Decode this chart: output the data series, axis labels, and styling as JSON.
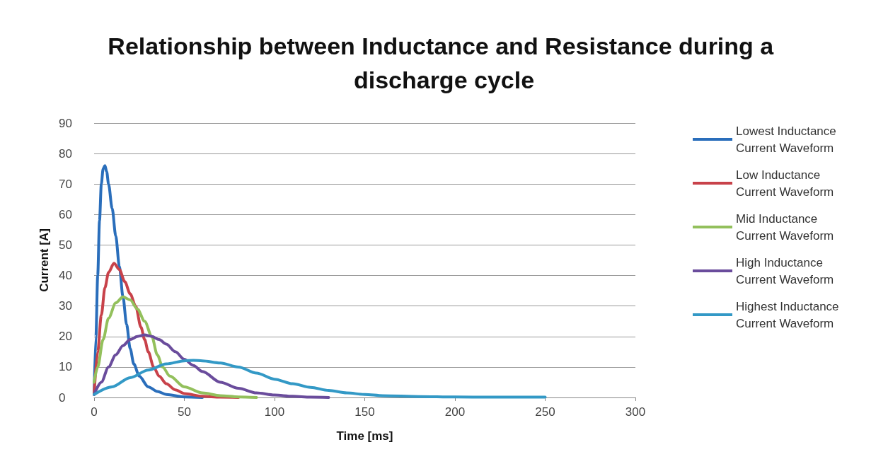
{
  "chart_data": {
    "type": "line",
    "title": "Relationship between Inductance and Resistance during a discharge cycle",
    "xlabel": "Time [ms]",
    "ylabel": "Current [A]",
    "xlim": [
      0,
      300
    ],
    "xticks": [
      0,
      50,
      100,
      150,
      200,
      250,
      300
    ],
    "ylim": [
      0,
      90
    ],
    "yticks": [
      0,
      10,
      20,
      30,
      40,
      50,
      60,
      70,
      80,
      90
    ],
    "grid": "y",
    "legend": "right",
    "marker": "none",
    "line_style": "solid",
    "series": [
      {
        "name": "Lowest Inductance Current Waveform",
        "color": "#2a6ebb",
        "x": [
          0,
          1,
          2,
          3,
          4,
          5,
          6,
          7,
          8,
          10,
          12,
          14,
          16,
          18,
          20,
          22,
          25,
          30,
          35,
          40,
          50,
          60
        ],
        "values": [
          1,
          20,
          40,
          58,
          70,
          75,
          76,
          74,
          70,
          62,
          53,
          43,
          33,
          24,
          16,
          11,
          7,
          3.5,
          2,
          1,
          0.2,
          0
        ]
      },
      {
        "name": "Low Inductance Current Waveform",
        "color": "#c8424a",
        "x": [
          0,
          2,
          4,
          6,
          8,
          11,
          14,
          17,
          20,
          23,
          26,
          28,
          30,
          33,
          36,
          40,
          45,
          50,
          60,
          70,
          80
        ],
        "values": [
          1,
          15,
          27,
          36,
          41,
          44,
          42,
          38,
          34,
          30,
          23,
          19,
          15,
          10,
          7,
          4.5,
          2.5,
          1.3,
          0.4,
          0.1,
          0
        ]
      },
      {
        "name": "Mid Inductance Current Waveform",
        "color": "#93c05c",
        "x": [
          0,
          2,
          5,
          8,
          12,
          16,
          20,
          24,
          28,
          32,
          35,
          38,
          42,
          50,
          60,
          70,
          80,
          90
        ],
        "values": [
          5,
          10,
          19,
          26,
          31,
          33,
          32,
          29,
          25,
          20,
          14,
          10,
          7,
          3.5,
          1.5,
          0.6,
          0.2,
          0
        ]
      },
      {
        "name": "High Inductance Current Waveform",
        "color": "#6a4c9c",
        "x": [
          0,
          4,
          8,
          12,
          16,
          20,
          24,
          28,
          32,
          36,
          40,
          45,
          50,
          55,
          60,
          70,
          80,
          90,
          100,
          110,
          120,
          130
        ],
        "values": [
          1,
          5,
          10,
          14,
          17,
          19,
          20,
          20.5,
          20,
          19,
          17.5,
          15,
          12.5,
          10.5,
          8.5,
          5,
          3,
          1.5,
          0.8,
          0.4,
          0.1,
          0
        ]
      },
      {
        "name": "Highest Inductance Current Waveform",
        "color": "#3399c6",
        "x": [
          0,
          10,
          20,
          30,
          40,
          50,
          55,
          60,
          70,
          80,
          90,
          100,
          110,
          120,
          130,
          140,
          150,
          160,
          180,
          200,
          220,
          250
        ],
        "values": [
          1,
          3.5,
          6.5,
          9,
          11,
          12,
          12.2,
          12,
          11.3,
          10,
          8,
          6,
          4.5,
          3.3,
          2.3,
          1.5,
          1,
          0.6,
          0.3,
          0.15,
          0.1,
          0.1
        ]
      }
    ]
  }
}
